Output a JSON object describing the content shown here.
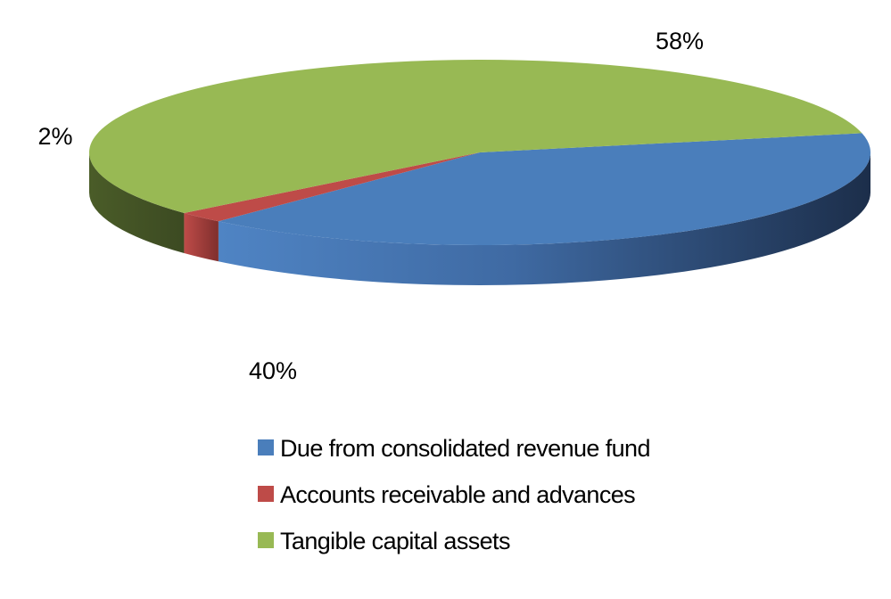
{
  "chart_data": {
    "type": "pie",
    "style": "3d",
    "title": "",
    "categories": [
      "Due from consolidated revenue fund",
      "Accounts receivable and advances",
      "Tangible capital assets"
    ],
    "values": [
      40,
      2,
      58
    ],
    "data_labels": [
      "40%",
      "2%",
      "58%"
    ],
    "colors": [
      "#4a7ebb",
      "#be4b48",
      "#98b954"
    ],
    "legend_position": "bottom"
  }
}
